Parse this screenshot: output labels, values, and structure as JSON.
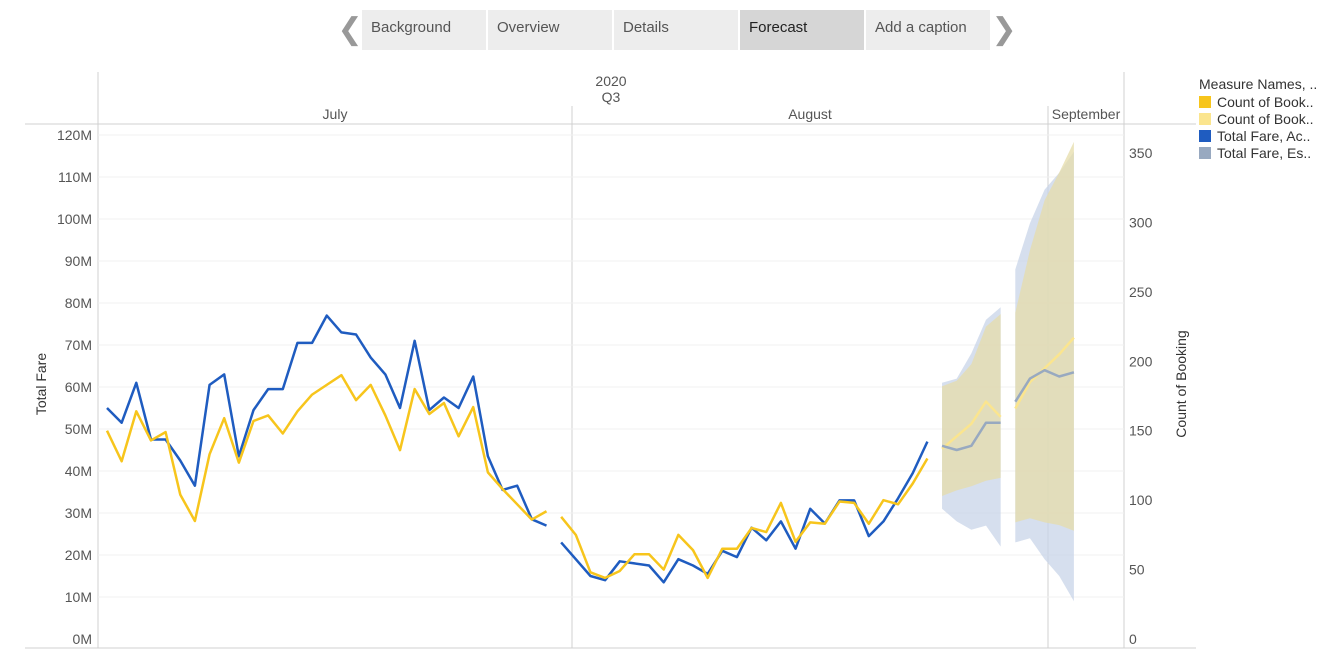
{
  "story": {
    "tabs": [
      {
        "label": "Background",
        "active": false
      },
      {
        "label": "Overview",
        "active": false
      },
      {
        "label": "Details",
        "active": false
      },
      {
        "label": "Forecast",
        "active": true
      },
      {
        "label": "Add a caption",
        "active": false
      }
    ],
    "prev_arrow": "❮",
    "next_arrow": "❯"
  },
  "legend": {
    "title": "Measure Names, ..",
    "items": [
      {
        "label": "Count of Book..",
        "color": "#f7c51c"
      },
      {
        "label": "Count of Book..",
        "color": "#fbe58e"
      },
      {
        "label": "Total Fare, Ac..",
        "color": "#1f5cc0"
      },
      {
        "label": "Total Fare, Es..",
        "color": "#98a9c0"
      }
    ]
  },
  "chart_data": {
    "type": "line",
    "year": "2020",
    "quarter": "Q3",
    "months": [
      "July",
      "August",
      "September"
    ],
    "ylabel_left": "Total Fare",
    "ylabel_right": "Count of Booking",
    "y_left_ticks": [
      "0M",
      "10M",
      "20M",
      "30M",
      "40M",
      "50M",
      "60M",
      "70M",
      "80M",
      "90M",
      "100M",
      "110M",
      "120M"
    ],
    "y_left_range": [
      0,
      120
    ],
    "y_right_ticks": [
      "0",
      "50",
      "100",
      "150",
      "200",
      "250",
      "300",
      "350"
    ],
    "y_right_range": [
      0,
      360
    ],
    "series": [
      {
        "name": "Total Fare, Actual",
        "axis": "left",
        "color": "#1f5cc0",
        "segments": [
          {
            "start_day": 1,
            "values": [
              55,
              51.5,
              61,
              47.5,
              47.5,
              42.5,
              36.5,
              60.5,
              63,
              43.5,
              54.5,
              59.5,
              59.5,
              70.5,
              70.5,
              77,
              73,
              72.5,
              67,
              63,
              55,
              71,
              54.5,
              57.5,
              55,
              62.5,
              43.5,
              35.5,
              36.5,
              28.5,
              27
            ]
          },
          {
            "start_day": 32,
            "values": [
              23,
              19,
              15,
              14,
              18.5,
              18,
              17.5,
              13.5,
              19,
              17.5,
              15.5,
              21,
              19.5,
              26.5,
              23.5,
              28,
              21.5,
              31,
              27.5,
              33,
              33,
              24.5,
              28,
              33.5,
              39.5,
              47
            ]
          }
        ]
      },
      {
        "name": "Count of Booking, Actual",
        "axis": "right",
        "color": "#f7c51c",
        "segments": [
          {
            "start_day": 1,
            "values": [
              150,
              128,
              164,
              143,
              149,
              104,
              85,
              133,
              159,
              127,
              157,
              161,
              148,
              164,
              176,
              183,
              190,
              172,
              183,
              161,
              136,
              180,
              162,
              170,
              146,
              167,
              120,
              108,
              97,
              86,
              92
            ]
          },
          {
            "start_day": 32,
            "values": [
              88,
              75,
              48,
              44,
              49,
              61,
              61,
              50,
              75,
              64,
              44,
              65,
              65,
              80,
              77,
              98,
              70,
              84,
              83,
              99,
              98,
              83,
              100,
              97,
              112,
              130
            ]
          }
        ]
      },
      {
        "name": "Count of Booking, Estimate",
        "axis": "right",
        "color": "#fbe58e",
        "segments": [
          {
            "start_day": 58,
            "values": [
              137,
              146,
              155,
              171,
              160
            ]
          },
          {
            "start_day": 63,
            "values": [
              166,
              185,
              195,
              205,
              217
            ]
          }
        ]
      },
      {
        "name": "Total Fare, Estimate",
        "axis": "left",
        "color": "#98a9c0",
        "segments": [
          {
            "start_day": 58,
            "values": [
              46,
              45,
              46,
              51.5,
              51.5
            ]
          },
          {
            "start_day": 63,
            "values": [
              56.5,
              62,
              64,
              62.5,
              63.5
            ]
          }
        ]
      }
    ],
    "bands": [
      {
        "name": "Total Fare, Estimate",
        "axis": "left",
        "color": "#c8d4e8",
        "segments": [
          {
            "start_day": 58,
            "upper": [
              61,
              62,
              68,
              76,
              79
            ],
            "lower": [
              31,
              28,
              26,
              27,
              22
            ]
          },
          {
            "start_day": 63,
            "upper": [
              88,
              99,
              107,
              111,
              116
            ],
            "lower": [
              23,
              24,
              19,
              15,
              9
            ]
          }
        ]
      },
      {
        "name": "Count of Booking, Estimate",
        "axis": "right",
        "color": "#e6dcaa",
        "segments": [
          {
            "start_day": 58,
            "upper": [
              182,
              186,
              198,
              225,
              234
            ],
            "lower": [
              103,
              107,
              110,
              114,
              116
            ]
          },
          {
            "start_day": 63,
            "upper": [
              235,
              280,
              316,
              336,
              358
            ],
            "lower": [
              84,
              87,
              84,
              82,
              78
            ]
          }
        ]
      }
    ]
  }
}
